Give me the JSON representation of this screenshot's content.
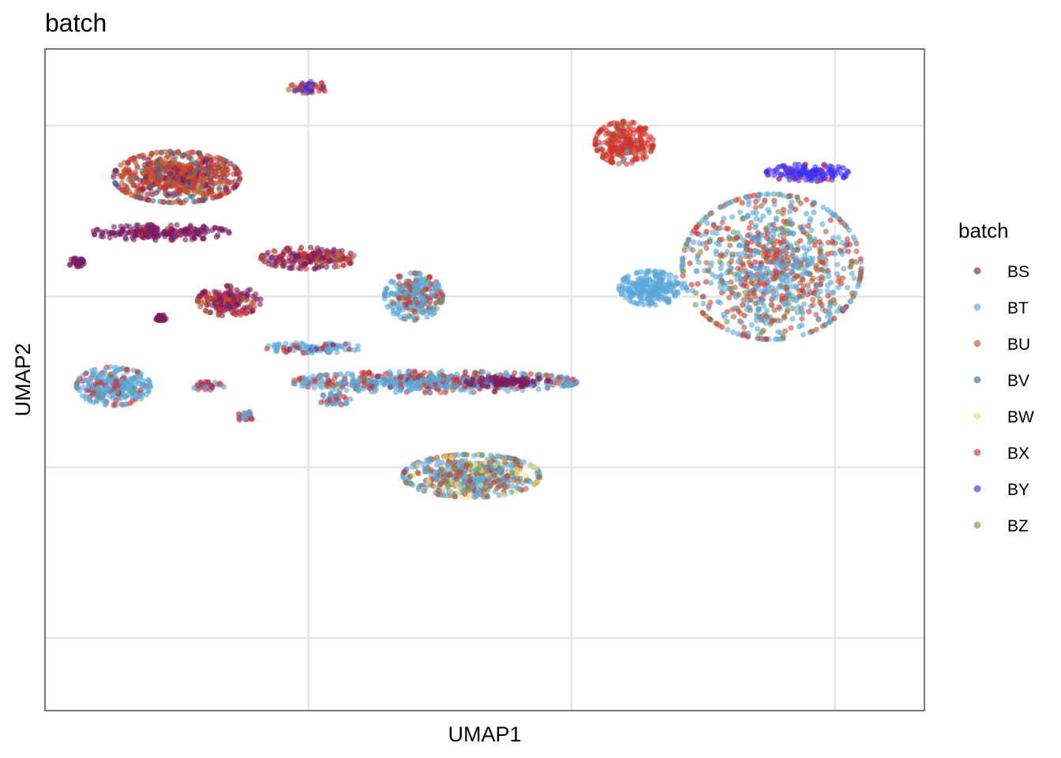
{
  "chart_data": {
    "type": "scatter",
    "title": "batch",
    "xlabel": "UMAP1",
    "ylabel": "UMAP2",
    "xlim": [
      -7.5,
      9.2
    ],
    "ylim": [
      -9.7,
      5.8
    ],
    "grid": true,
    "x_ticks_shown": false,
    "y_ticks_shown": false,
    "legend": {
      "title": "batch",
      "placement": "right",
      "entries": [
        {
          "name": "BS",
          "color": "#7b1d63"
        },
        {
          "name": "BT",
          "color": "#5aa6d8"
        },
        {
          "name": "BU",
          "color": "#b85a2c"
        },
        {
          "name": "BV",
          "color": "#3f6f8d"
        },
        {
          "name": "BW",
          "color": "#f1df6e"
        },
        {
          "name": "BX",
          "color": "#d3302d"
        },
        {
          "name": "BY",
          "color": "#3a2eff"
        },
        {
          "name": "BZ",
          "color": "#6d9a4b"
        }
      ]
    },
    "clusters": [
      {
        "x": -2.5,
        "y": 4.9,
        "spread": [
          0.4,
          0.15
        ],
        "mix": {
          "BY": 0.4,
          "BU": 0.35,
          "BX": 0.15,
          "BS": 0.1
        }
      },
      {
        "x": 3.5,
        "y": 3.6,
        "spread": [
          0.55,
          0.5
        ],
        "mix": {
          "BX": 0.8,
          "BU": 0.15,
          "BT": 0.05
        }
      },
      {
        "x": -5.0,
        "y": 2.8,
        "spread": [
          1.2,
          0.6
        ],
        "mix": {
          "BU": 0.45,
          "BX": 0.25,
          "BV": 0.15,
          "BS": 0.15
        }
      },
      {
        "x": -5.3,
        "y": 1.5,
        "spread": [
          1.3,
          0.18
        ],
        "mix": {
          "BS": 0.95,
          "BX": 0.05
        }
      },
      {
        "x": -6.9,
        "y": 0.8,
        "spread": [
          0.15,
          0.1
        ],
        "mix": {
          "BS": 1.0
        }
      },
      {
        "x": -2.5,
        "y": 0.9,
        "spread": [
          0.9,
          0.25
        ],
        "mix": {
          "BS": 0.55,
          "BU": 0.25,
          "BX": 0.2
        }
      },
      {
        "x": -4.0,
        "y": -0.1,
        "spread": [
          0.6,
          0.35
        ],
        "mix": {
          "BS": 0.55,
          "BU": 0.3,
          "BX": 0.15
        }
      },
      {
        "x": -5.3,
        "y": -0.5,
        "spread": [
          0.1,
          0.08
        ],
        "mix": {
          "BS": 1.0
        }
      },
      {
        "x": -0.5,
        "y": 0.0,
        "spread": [
          0.55,
          0.55
        ],
        "mix": {
          "BT": 0.65,
          "BX": 0.2,
          "BU": 0.1,
          "BZ": 0.05
        }
      },
      {
        "x": 6.3,
        "y": 0.7,
        "spread": [
          1.7,
          1.7
        ],
        "mix": {
          "BT": 0.55,
          "BU": 0.25,
          "BX": 0.15,
          "BZ": 0.05
        }
      },
      {
        "x": 4.0,
        "y": 0.2,
        "spread": [
          0.6,
          0.4
        ],
        "mix": {
          "BT": 1.0
        }
      },
      {
        "x": 7.0,
        "y": 2.9,
        "spread": [
          0.8,
          0.2
        ],
        "mix": {
          "BY": 0.85,
          "BX": 0.15
        }
      },
      {
        "x": -2.4,
        "y": -1.2,
        "spread": [
          0.9,
          0.12
        ],
        "mix": {
          "BT": 0.7,
          "BX": 0.2,
          "BS": 0.1
        }
      },
      {
        "x": -0.1,
        "y": -2.0,
        "spread": [
          2.7,
          0.25
        ],
        "mix": {
          "BT": 0.6,
          "BX": 0.25,
          "BU": 0.1,
          "BS": 0.05
        }
      },
      {
        "x": 1.3,
        "y": -2.0,
        "spread": [
          0.8,
          0.12
        ],
        "mix": {
          "BS": 1.0
        }
      },
      {
        "x": -6.2,
        "y": -2.1,
        "spread": [
          0.7,
          0.45
        ],
        "mix": {
          "BT": 0.75,
          "BX": 0.2,
          "BZ": 0.05
        }
      },
      {
        "x": -3.7,
        "y": -2.8,
        "spread": [
          0.15,
          0.12
        ],
        "mix": {
          "BT": 0.5,
          "BX": 0.5
        }
      },
      {
        "x": -2.0,
        "y": -2.4,
        "spread": [
          0.3,
          0.15
        ],
        "mix": {
          "BT": 0.6,
          "BX": 0.3,
          "BZ": 0.1
        }
      },
      {
        "x": -4.4,
        "y": -2.1,
        "spread": [
          0.3,
          0.1
        ],
        "mix": {
          "BX": 0.7,
          "BT": 0.2,
          "BY": 0.1
        }
      },
      {
        "x": 0.6,
        "y": -4.2,
        "spread": [
          1.3,
          0.5
        ],
        "mix": {
          "BT": 0.5,
          "BU": 0.25,
          "BW": 0.15,
          "BX": 0.07,
          "BZ": 0.03
        }
      }
    ]
  }
}
